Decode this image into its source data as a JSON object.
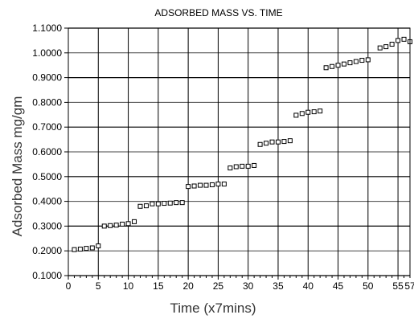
{
  "chart_data": {
    "type": "scatter",
    "title": "ADSORBED MASS VS. TIME",
    "xlabel": "Time (x7mins)",
    "ylabel": "Adsorbed Mass mg/gm",
    "xlim": [
      0,
      57
    ],
    "ylim": [
      0.1,
      1.1
    ],
    "x_ticks": [
      0,
      5,
      10,
      15,
      20,
      25,
      30,
      35,
      40,
      45,
      50,
      55,
      57
    ],
    "x_tick_labels": [
      "0",
      "5",
      "10",
      "15",
      "20",
      "25",
      "30",
      "35",
      "40",
      "45",
      "50",
      "55",
      "57"
    ],
    "y_ticks": [
      0.1,
      0.2,
      0.3,
      0.4,
      0.5,
      0.6,
      0.7,
      0.8,
      0.9,
      1.0,
      1.1
    ],
    "y_tick_labels": [
      "0.1000",
      "0.2000",
      "0.3000",
      "0.4000",
      "0.5000",
      "0.6000",
      "0.7000",
      "0.8000",
      "0.9000",
      "1.0000",
      "1.1000"
    ],
    "grid": true,
    "marker": "square",
    "series": [
      {
        "points": [
          [
            1,
            0.205
          ],
          [
            2,
            0.207
          ],
          [
            3,
            0.21
          ],
          [
            4,
            0.212
          ],
          [
            5,
            0.22
          ],
          [
            6,
            0.3
          ],
          [
            7,
            0.302
          ],
          [
            8,
            0.304
          ],
          [
            9,
            0.308
          ],
          [
            10,
            0.31
          ],
          [
            11,
            0.318
          ],
          [
            12,
            0.38
          ],
          [
            13,
            0.382
          ],
          [
            14,
            0.39
          ],
          [
            15,
            0.39
          ],
          [
            16,
            0.392
          ],
          [
            17,
            0.393
          ],
          [
            18,
            0.395
          ],
          [
            19,
            0.395
          ],
          [
            20,
            0.46
          ],
          [
            21,
            0.462
          ],
          [
            22,
            0.465
          ],
          [
            23,
            0.465
          ],
          [
            24,
            0.467
          ],
          [
            25,
            0.47
          ],
          [
            26,
            0.47
          ],
          [
            27,
            0.535
          ],
          [
            28,
            0.54
          ],
          [
            29,
            0.542
          ],
          [
            30,
            0.542
          ],
          [
            31,
            0.545
          ],
          [
            32,
            0.63
          ],
          [
            33,
            0.635
          ],
          [
            34,
            0.64
          ],
          [
            35,
            0.64
          ],
          [
            36,
            0.642
          ],
          [
            37,
            0.645
          ],
          [
            38,
            0.748
          ],
          [
            39,
            0.755
          ],
          [
            40,
            0.76
          ],
          [
            41,
            0.762
          ],
          [
            42,
            0.765
          ],
          [
            43,
            0.94
          ],
          [
            44,
            0.945
          ],
          [
            45,
            0.95
          ],
          [
            46,
            0.955
          ],
          [
            47,
            0.96
          ],
          [
            48,
            0.965
          ],
          [
            49,
            0.97
          ],
          [
            50,
            0.972
          ],
          [
            52,
            1.02
          ],
          [
            53,
            1.025
          ],
          [
            54,
            1.035
          ],
          [
            55,
            1.05
          ],
          [
            56,
            1.055
          ],
          [
            57,
            1.045
          ]
        ]
      }
    ]
  }
}
